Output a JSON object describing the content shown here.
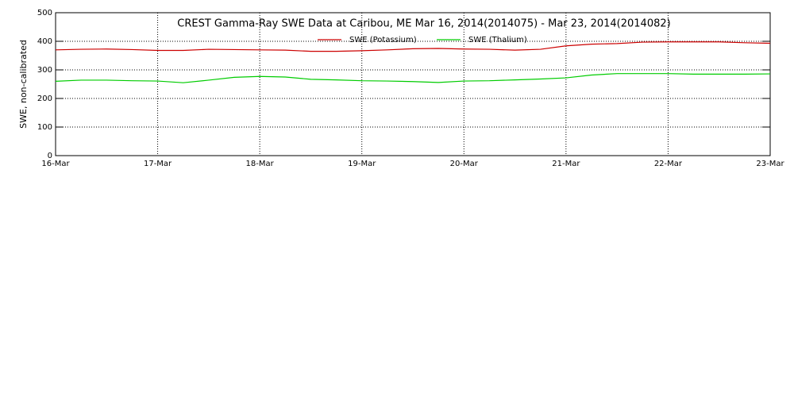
{
  "chart_data": {
    "type": "line",
    "title": "CREST Gamma-Ray SWE Data at Caribou, ME   Mar 16, 2014(2014075) - Mar 23, 2014(2014082)",
    "y_label": "SWE, non-calibrated",
    "x": [
      0,
      0.25,
      0.5,
      0.75,
      1,
      1.25,
      1.5,
      1.75,
      2,
      2.25,
      2.5,
      2.75,
      3,
      3.25,
      3.5,
      3.75,
      4,
      4.25,
      4.5,
      4.75,
      5,
      5.25,
      5.5,
      5.75,
      6,
      6.25,
      6.5,
      6.75,
      7
    ],
    "series": [
      {
        "name": "SWE (Potassium)",
        "color": "#cc0000",
        "values": [
          370,
          372,
          373,
          371,
          368,
          368,
          372,
          371,
          370,
          369,
          365,
          365,
          367,
          370,
          374,
          375,
          373,
          372,
          369,
          372,
          384,
          390,
          392,
          397,
          398,
          398,
          398,
          395,
          393
        ]
      },
      {
        "name": "SWE (Thalium)",
        "color": "#00cc00",
        "values": [
          260,
          264,
          264,
          262,
          261,
          255,
          264,
          274,
          277,
          275,
          267,
          265,
          262,
          261,
          259,
          256,
          261,
          262,
          265,
          268,
          272,
          282,
          287,
          287,
          287,
          285,
          285,
          285,
          286
        ]
      }
    ],
    "xlim": [
      0,
      7
    ],
    "xticks": [
      {
        "value": 0,
        "label": "16-Mar"
      },
      {
        "value": 1,
        "label": "17-Mar"
      },
      {
        "value": 2,
        "label": "18-Mar"
      },
      {
        "value": 3,
        "label": "19-Mar"
      },
      {
        "value": 4,
        "label": "20-Mar"
      },
      {
        "value": 5,
        "label": "21-Mar"
      },
      {
        "value": 6,
        "label": "22-Mar"
      },
      {
        "value": 7,
        "label": "23-Mar"
      }
    ],
    "ylim": [
      0,
      500
    ],
    "yticks": [
      0,
      100,
      200,
      300,
      400,
      500
    ],
    "grid": true
  }
}
